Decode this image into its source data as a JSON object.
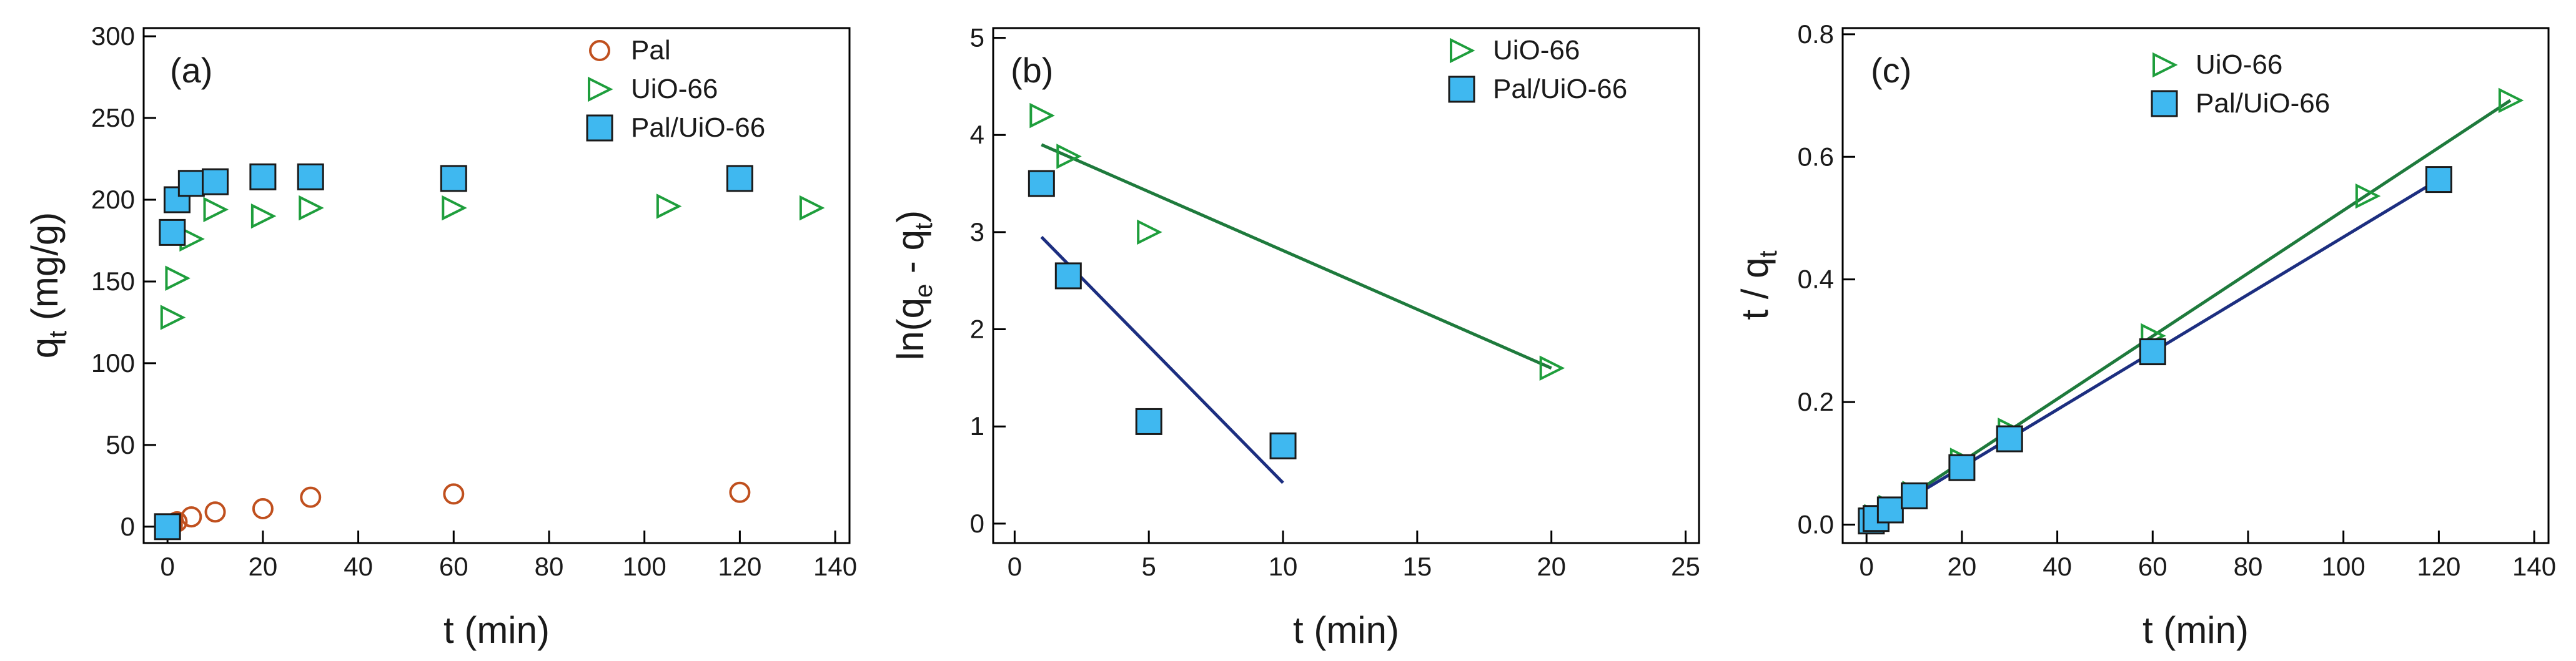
{
  "chart_data": [
    {
      "type": "scatter",
      "panel_label": "(a)",
      "xlabel": {
        "main": "t (min)"
      },
      "ylabel": {
        "main": "q",
        "sub": "t",
        "rest": " (mg/g)"
      },
      "xlim": [
        -5,
        143
      ],
      "ylim": [
        -10,
        305
      ],
      "xticks": [
        0,
        20,
        40,
        60,
        80,
        100,
        120,
        140
      ],
      "yticks": [
        0,
        50,
        100,
        150,
        200,
        250,
        300
      ],
      "legend_position": "top-right",
      "series": [
        {
          "name": "Pal",
          "marker": "circle",
          "color": "#C0501E",
          "x": [
            0.5,
            1,
            2,
            5,
            10,
            20,
            30,
            60,
            120
          ],
          "y": [
            0,
            1,
            3,
            6,
            9,
            11,
            18,
            20,
            21
          ]
        },
        {
          "name": "UiO-66",
          "marker": "triangle-right",
          "color": "#1E9E3C",
          "x": [
            1,
            2,
            5,
            10,
            20,
            30,
            60,
            105,
            135
          ],
          "y": [
            128,
            152,
            176,
            194,
            190,
            195,
            195,
            196,
            195
          ]
        },
        {
          "name": "Pal/UiO-66",
          "marker": "square",
          "color": "#3FB8F0",
          "x": [
            0,
            1,
            2,
            5,
            10,
            20,
            30,
            60,
            120
          ],
          "y": [
            0,
            180,
            200,
            210,
            211,
            214,
            214,
            213,
            213
          ]
        }
      ]
    },
    {
      "type": "scatter",
      "panel_label": "(b)",
      "xlabel": {
        "main": "t (min)"
      },
      "ylabel": {
        "pre": "ln(q",
        "sub1": "e",
        "mid": " - q",
        "sub2": "t",
        "post": ")"
      },
      "xlim": [
        -0.8,
        25.5
      ],
      "ylim": [
        -0.2,
        5.1
      ],
      "xticks": [
        0,
        5,
        10,
        15,
        20,
        25
      ],
      "yticks": [
        0,
        1,
        2,
        3,
        4,
        5
      ],
      "legend_position": "top-right",
      "series": [
        {
          "name": "UiO-66",
          "marker": "triangle-right",
          "color": "#1E9E3C",
          "line_color": "#1E7A3C",
          "x": [
            1,
            2,
            5,
            20
          ],
          "y": [
            4.2,
            3.78,
            3.0,
            1.6
          ],
          "fit": {
            "x": [
              1,
              20
            ],
            "y": [
              3.9,
              1.6
            ]
          }
        },
        {
          "name": "Pal/UiO-66",
          "marker": "square",
          "color": "#3FB8F0",
          "line_color": "#1C2E80",
          "x": [
            1,
            2,
            5,
            10
          ],
          "y": [
            3.5,
            2.55,
            1.05,
            0.8
          ],
          "fit": {
            "x": [
              1,
              10
            ],
            "y": [
              2.95,
              0.42
            ]
          }
        }
      ]
    },
    {
      "type": "scatter",
      "panel_label": "(c)",
      "xlabel": {
        "main": "t (min)"
      },
      "ylabel": {
        "pre": "t / q",
        "sub": "t"
      },
      "xlim": [
        -5,
        143
      ],
      "ylim": [
        -0.03,
        0.81
      ],
      "xticks": [
        0,
        20,
        40,
        60,
        80,
        100,
        120,
        140
      ],
      "yticks": [
        0.0,
        0.2,
        0.4,
        0.6,
        0.8
      ],
      "yticklabels": [
        "0.0",
        "0.2",
        "0.4",
        "0.6",
        "0.8"
      ],
      "legend_position": "top-center",
      "series": [
        {
          "name": "UiO-66",
          "marker": "triangle-right",
          "color": "#1E9E3C",
          "line_color": "#1E7A3C",
          "x": [
            1,
            2,
            5,
            10,
            20,
            30,
            60,
            105,
            135
          ],
          "y": [
            0.008,
            0.013,
            0.028,
            0.051,
            0.105,
            0.154,
            0.308,
            0.536,
            0.692
          ],
          "fit": {
            "x": [
              0,
              135
            ],
            "y": [
              0.0,
              0.692
            ]
          }
        },
        {
          "name": "Pal/UiO-66",
          "marker": "square",
          "color": "#3FB8F0",
          "line_color": "#1C2E80",
          "x": [
            1,
            2,
            5,
            10,
            20,
            30,
            60,
            120
          ],
          "y": [
            0.006,
            0.01,
            0.024,
            0.047,
            0.093,
            0.14,
            0.282,
            0.563
          ],
          "fit": {
            "x": [
              0,
              120
            ],
            "y": [
              0.0,
              0.563
            ]
          }
        }
      ]
    }
  ]
}
